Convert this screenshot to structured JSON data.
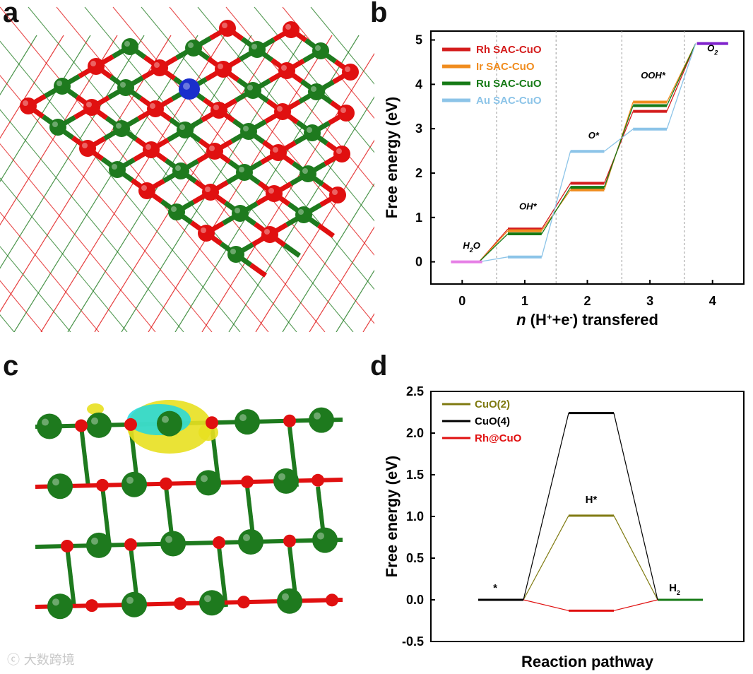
{
  "panel_letters": [
    "a",
    "b",
    "c",
    "d"
  ],
  "watermark": "大数跨境",
  "colors": {
    "atom_cu": "#1e7a1e",
    "atom_o": "#e01010",
    "atom_single": "#1a2ecc",
    "charge_yellow": "#e8e020",
    "charge_cyan": "#20d8e0"
  },
  "chart_data": [
    {
      "type": "line",
      "panel": "b",
      "xlabel_italic": "n",
      "xlabel_rest": " (H",
      "xlabel_sup1": "+",
      "xlabel_mid": "+e",
      "xlabel_sup2": "-",
      "xlabel_end": ") transfered",
      "ylabel": "Free energy (eV)",
      "xlim": [
        -0.5,
        4.5
      ],
      "ylim": [
        -0.5,
        5.2
      ],
      "xticks": [
        "0",
        "1",
        "2",
        "3",
        "4"
      ],
      "yticks": [
        "0",
        "1",
        "2",
        "3",
        "4",
        "5"
      ],
      "dividers": [
        0.55,
        1.5,
        2.55,
        3.55
      ],
      "legend_position": "top-left",
      "state_labels": [
        {
          "text": "H2O",
          "base": "H",
          "sub": "2",
          "tail": "O",
          "x": 0.15,
          "y": 0.3
        },
        {
          "text": "OH*",
          "x": 1.05,
          "y": 1.18
        },
        {
          "text": "O*",
          "x": 2.1,
          "y": 2.78
        },
        {
          "text": "OOH*",
          "x": 3.05,
          "y": 4.13
        },
        {
          "text": "O2",
          "base": "O",
          "sub": "2",
          "tail": "",
          "x": 4.0,
          "y": 4.75
        }
      ],
      "initial_level": {
        "color": "#e67fe6",
        "y": 0,
        "x": [
          -0.18,
          0.32
        ]
      },
      "final_level": {
        "color": "#7f22cc",
        "y": 4.92,
        "x": [
          3.75,
          4.25
        ]
      },
      "series": [
        {
          "name": "Rh SAC-CuO",
          "color": "#d41c1c",
          "values": [
            0,
            0.74,
            1.77,
            3.39,
            4.92
          ]
        },
        {
          "name": "Ir SAC-CuO",
          "color": "#f08c1e",
          "values": [
            0,
            0.7,
            1.62,
            3.6,
            4.92
          ]
        },
        {
          "name": "Ru SAC-CuO",
          "color": "#157a15",
          "values": [
            0,
            0.63,
            1.68,
            3.52,
            4.92
          ]
        },
        {
          "name": "Au SAC-CuO",
          "color": "#8cc4e8",
          "values": [
            0,
            0.11,
            2.49,
            2.99,
            4.92
          ]
        }
      ]
    },
    {
      "type": "line",
      "panel": "d",
      "xlabel": "Reaction pathway",
      "ylabel": "Free energy (eV)",
      "ylim": [
        -0.5,
        2.5
      ],
      "yticks": [
        "2.5",
        "2.0",
        "1.5",
        "1.0",
        "0.5",
        "0.0",
        "-0.5"
      ],
      "legend_position": "top-left",
      "state_labels": [
        {
          "text": "*",
          "x": 0,
          "y": 0.1
        },
        {
          "text": "H*",
          "x": 1,
          "y": 1.16
        },
        {
          "text": "H2",
          "base": "H",
          "sub": "2",
          "tail": "",
          "x": 2,
          "y": 0.1
        }
      ],
      "series": [
        {
          "name": "CuO(2)",
          "color": "#7f7a10",
          "values": [
            0,
            1.01,
            0
          ]
        },
        {
          "name": "CuO(4)",
          "color": "#000000",
          "values": [
            0,
            2.24,
            0
          ]
        },
        {
          "name": "Rh@CuO",
          "color": "#e01010",
          "values": [
            0,
            -0.13,
            0
          ]
        }
      ],
      "end_level_color": "#157a15"
    }
  ]
}
